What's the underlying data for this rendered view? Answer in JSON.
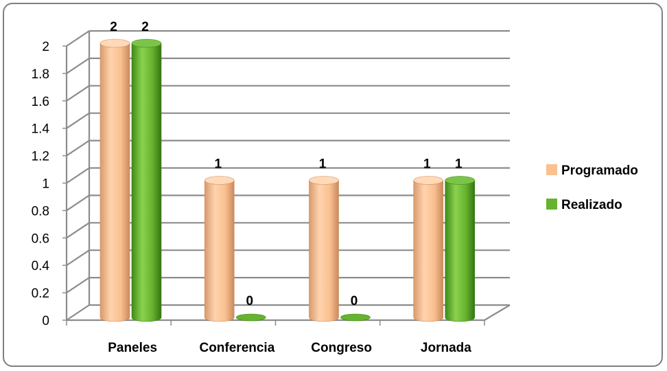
{
  "chart_data": {
    "type": "bar",
    "categories": [
      "Paneles",
      "Conferencia",
      "Congreso",
      "Jornada"
    ],
    "series": [
      {
        "name": "Programado",
        "values": [
          2,
          1,
          1,
          1
        ],
        "color": "#fac090"
      },
      {
        "name": "Realizado",
        "values": [
          2,
          0,
          0,
          1
        ],
        "color": "#66b32e"
      }
    ],
    "ylim": [
      0,
      2
    ],
    "yticks": [
      "0",
      "0.2",
      "0.4",
      "0.6",
      "0.8",
      "1",
      "1.2",
      "1.4",
      "1.6",
      "1.8",
      "2"
    ],
    "data_labels": true,
    "grid": true,
    "legend": "right",
    "style": "3d-cylinder"
  }
}
